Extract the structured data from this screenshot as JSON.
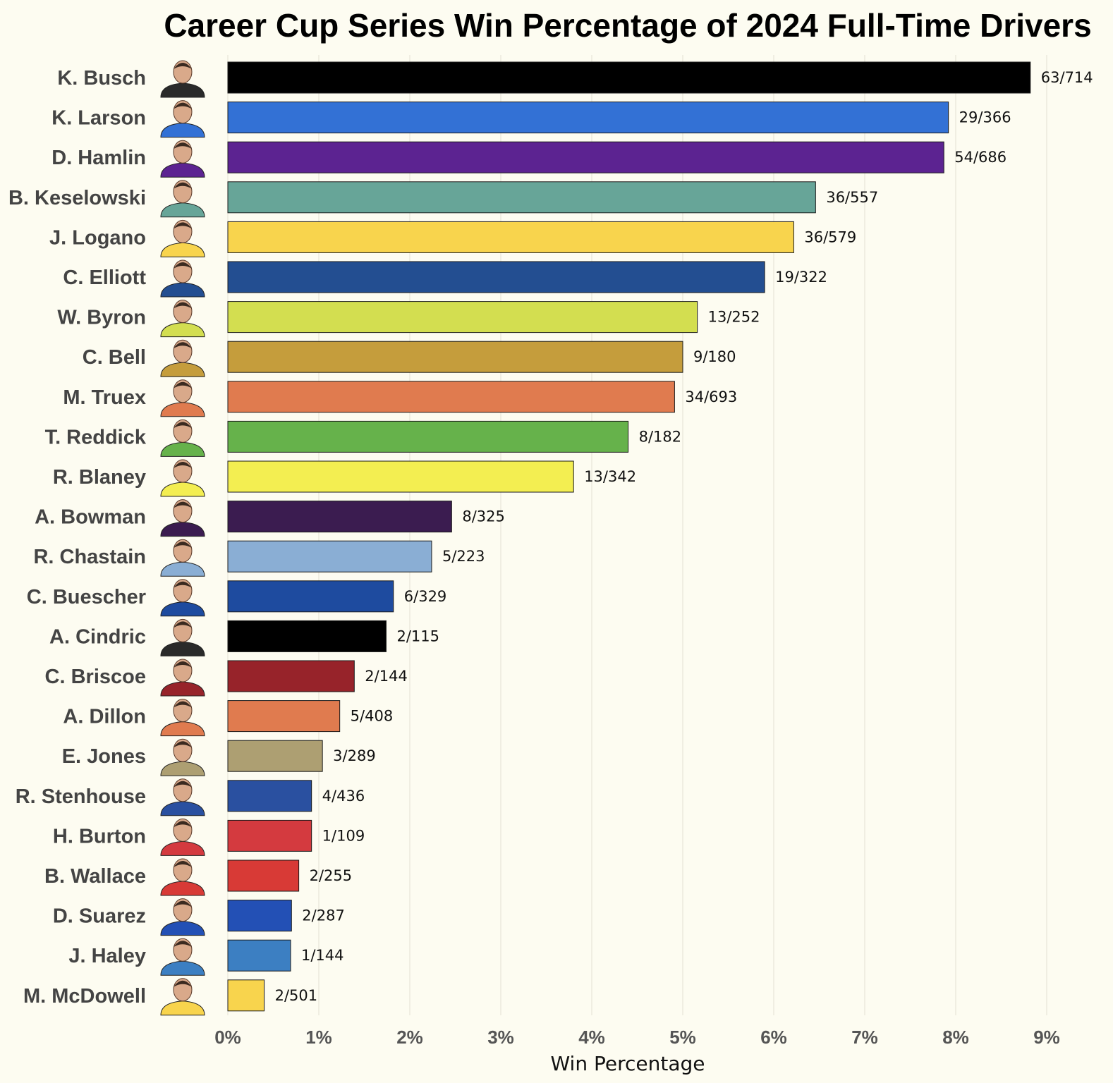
{
  "chart_data": {
    "type": "bar",
    "orientation": "horizontal",
    "title": "Career Cup Series Win Percentage of 2024 Full-Time Drivers",
    "xlabel": "Win Percentage",
    "ylabel": "",
    "xlim": [
      0,
      9
    ],
    "x_ticks": [
      "0%",
      "1%",
      "2%",
      "3%",
      "4%",
      "5%",
      "6%",
      "7%",
      "8%",
      "9%"
    ],
    "grid": "vertical",
    "bars": [
      {
        "driver": "K. Busch",
        "label": "63/714",
        "wins": 63,
        "races": 714,
        "value": 8.82,
        "color": "#000000"
      },
      {
        "driver": "K. Larson",
        "label": "29/366",
        "wins": 29,
        "races": 366,
        "value": 7.92,
        "color": "#3371d5"
      },
      {
        "driver": "D. Hamlin",
        "label": "54/686",
        "wins": 54,
        "races": 686,
        "value": 7.87,
        "color": "#5c2391"
      },
      {
        "driver": "B. Keselowski",
        "label": "36/557",
        "wins": 36,
        "races": 557,
        "value": 6.46,
        "color": "#67a598"
      },
      {
        "driver": "J. Logano",
        "label": "36/579",
        "wins": 36,
        "races": 579,
        "value": 6.22,
        "color": "#f8d44d"
      },
      {
        "driver": "C. Elliott",
        "label": "19/322",
        "wins": 19,
        "races": 322,
        "value": 5.9,
        "color": "#234e91"
      },
      {
        "driver": "W. Byron",
        "label": "13/252",
        "wins": 13,
        "races": 252,
        "value": 5.16,
        "color": "#d3de50"
      },
      {
        "driver": "C. Bell",
        "label": "9/180",
        "wins": 9,
        "races": 180,
        "value": 5.0,
        "color": "#c59d3c"
      },
      {
        "driver": "M. Truex",
        "label": "34/693",
        "wins": 34,
        "races": 693,
        "value": 4.91,
        "color": "#e07b4f"
      },
      {
        "driver": "T. Reddick",
        "label": "8/182",
        "wins": 8,
        "races": 182,
        "value": 4.4,
        "color": "#66b24b"
      },
      {
        "driver": "R. Blaney",
        "label": "13/342",
        "wins": 13,
        "races": 342,
        "value": 3.8,
        "color": "#f3ee51"
      },
      {
        "driver": "A. Bowman",
        "label": "8/325",
        "wins": 8,
        "races": 325,
        "value": 2.46,
        "color": "#3b1c50"
      },
      {
        "driver": "R. Chastain",
        "label": "5/223",
        "wins": 5,
        "races": 223,
        "value": 2.24,
        "color": "#8aaed4"
      },
      {
        "driver": "C. Buescher",
        "label": "6/329",
        "wins": 6,
        "races": 329,
        "value": 1.82,
        "color": "#1e4b9f"
      },
      {
        "driver": "A. Cindric",
        "label": "2/115",
        "wins": 2,
        "races": 115,
        "value": 1.74,
        "color": "#000000"
      },
      {
        "driver": "C. Briscoe",
        "label": "2/144",
        "wins": 2,
        "races": 144,
        "value": 1.39,
        "color": "#97232a"
      },
      {
        "driver": "A. Dillon",
        "label": "5/408",
        "wins": 5,
        "races": 408,
        "value": 1.23,
        "color": "#e07b4f"
      },
      {
        "driver": "E. Jones",
        "label": "3/289",
        "wins": 3,
        "races": 289,
        "value": 1.04,
        "color": "#ad9f72"
      },
      {
        "driver": "R. Stenhouse",
        "label": "4/436",
        "wins": 4,
        "races": 436,
        "value": 0.92,
        "color": "#2a50a0"
      },
      {
        "driver": "H. Burton",
        "label": "1/109",
        "wins": 1,
        "races": 109,
        "value": 0.92,
        "color": "#d43a3f"
      },
      {
        "driver": "B. Wallace",
        "label": "2/255",
        "wins": 2,
        "races": 255,
        "value": 0.78,
        "color": "#d83a36"
      },
      {
        "driver": "D. Suarez",
        "label": "2/287",
        "wins": 2,
        "races": 287,
        "value": 0.7,
        "color": "#2350b5"
      },
      {
        "driver": "J. Haley",
        "label": "1/144",
        "wins": 1,
        "races": 144,
        "value": 0.69,
        "color": "#3c7fc2"
      },
      {
        "driver": "M. McDowell",
        "label": "2/501",
        "wins": 2,
        "races": 501,
        "value": 0.4,
        "color": "#f8d44d"
      }
    ]
  }
}
